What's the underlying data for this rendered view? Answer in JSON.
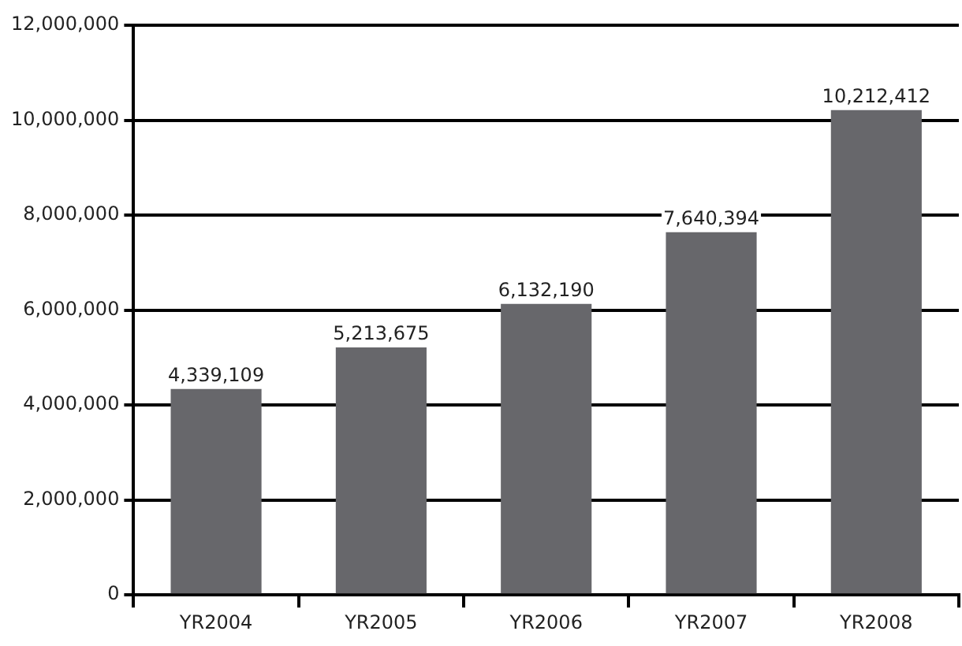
{
  "chart_data": {
    "type": "bar",
    "categories": [
      "YR2004",
      "YR2005",
      "YR2006",
      "YR2007",
      "YR2008"
    ],
    "values": [
      4339109,
      5213675,
      6132190,
      7640394,
      10212412
    ],
    "value_labels": [
      "4,339,109",
      "5,213,675",
      "6,132,190",
      "7,640,394",
      "10,212,412"
    ],
    "color": "#67676b",
    "ylim": [
      0,
      12000000
    ],
    "yticks": [
      0,
      {
        "value": 2000000,
        "label": "2,000,000"
      },
      {
        "value": 4000000,
        "label": "4,000,000"
      },
      {
        "value": 6000000,
        "label": "6,000,000"
      },
      {
        "value": 8000000,
        "label": "8,000,000"
      },
      {
        "value": 10000000,
        "label": "10,000,000"
      },
      {
        "value": 12000000,
        "label": "12,000,000"
      }
    ],
    "grid": "y"
  }
}
